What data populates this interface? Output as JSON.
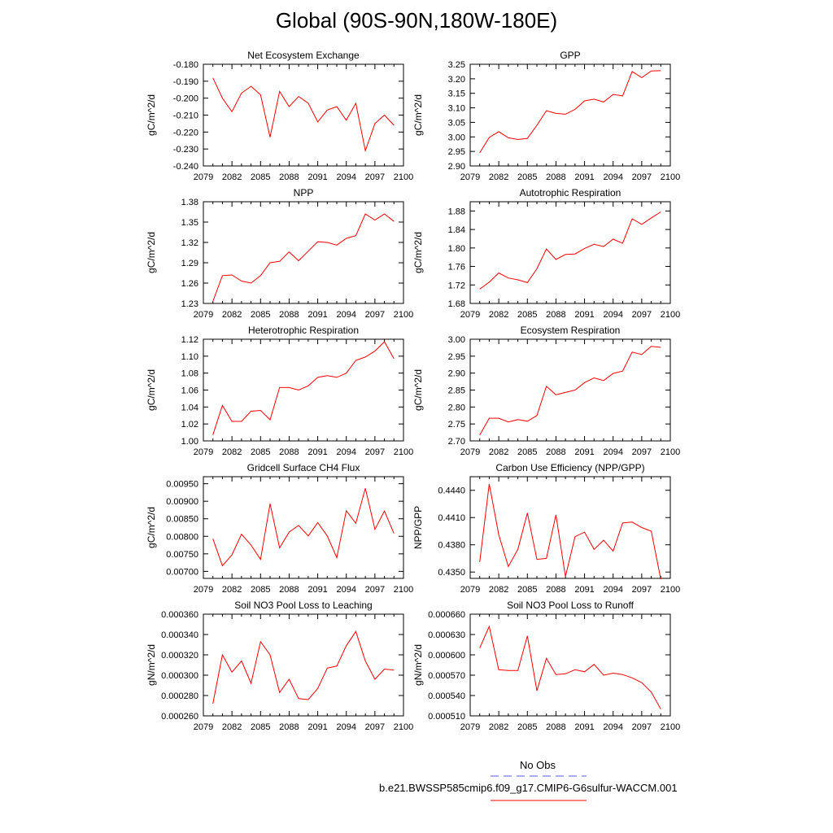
{
  "title": "Global (90S-90N,180W-180E)",
  "legend": {
    "title": "No Obs",
    "entries": [
      {
        "label": "",
        "color": "#5555ff",
        "dash": true
      },
      {
        "label": "b.e21.BWSSP585cmip6.f09_g17.CMIP6-G6sulfur-WACCM.001",
        "color": "#ff0000",
        "dash": false
      }
    ]
  },
  "chart_data": [
    {
      "type": "line",
      "title": "Net Ecosystem Exchange",
      "ylabel": "gC/m^2/d",
      "x": [
        2080,
        2081,
        2082,
        2083,
        2084,
        2085,
        2086,
        2087,
        2088,
        2089,
        2090,
        2091,
        2092,
        2093,
        2094,
        2095,
        2096,
        2097,
        2098,
        2099
      ],
      "xlim": [
        2079,
        2100
      ],
      "xticks": [
        "2079",
        "2082",
        "2085",
        "2088",
        "2091",
        "2094",
        "2097",
        "2100"
      ],
      "ylim": [
        -0.24,
        -0.18
      ],
      "yticks": [
        "-0.180",
        "-0.190",
        "-0.200",
        "-0.210",
        "-0.220",
        "-0.230",
        "-0.240"
      ],
      "ytick_values": [
        -0.18,
        -0.19,
        -0.2,
        -0.21,
        -0.22,
        -0.23,
        -0.24
      ],
      "series": [
        {
          "color": "#ff0000",
          "values": [
            -0.188,
            -0.2,
            -0.208,
            -0.197,
            -0.193,
            -0.198,
            -0.223,
            -0.196,
            -0.205,
            -0.199,
            -0.203,
            -0.214,
            -0.207,
            -0.205,
            -0.213,
            -0.203,
            -0.231,
            -0.215,
            -0.21,
            -0.216
          ]
        }
      ]
    },
    {
      "type": "line",
      "title": "GPP",
      "ylabel": "gC/m^2/d",
      "x": [
        2080,
        2081,
        2082,
        2083,
        2084,
        2085,
        2086,
        2087,
        2088,
        2089,
        2090,
        2091,
        2092,
        2093,
        2094,
        2095,
        2096,
        2097,
        2098,
        2099
      ],
      "xlim": [
        2079,
        2100
      ],
      "xticks": [
        "2079",
        "2082",
        "2085",
        "2088",
        "2091",
        "2094",
        "2097",
        "2100"
      ],
      "ylim": [
        2.9,
        3.25
      ],
      "yticks": [
        "3.25",
        "3.20",
        "3.15",
        "3.10",
        "3.05",
        "3.00",
        "2.95",
        "2.90"
      ],
      "ytick_values": [
        3.25,
        3.2,
        3.15,
        3.1,
        3.05,
        3.0,
        2.95,
        2.9
      ],
      "series": [
        {
          "color": "#ff0000",
          "values": [
            2.945,
            2.998,
            3.018,
            2.997,
            2.991,
            2.995,
            3.04,
            3.09,
            3.081,
            3.078,
            3.095,
            3.124,
            3.13,
            3.12,
            3.146,
            3.141,
            3.225,
            3.204,
            3.227,
            3.228
          ]
        }
      ]
    },
    {
      "type": "line",
      "title": "NPP",
      "ylabel": "gC/m^2/d",
      "x": [
        2080,
        2081,
        2082,
        2083,
        2084,
        2085,
        2086,
        2087,
        2088,
        2089,
        2090,
        2091,
        2092,
        2093,
        2094,
        2095,
        2096,
        2097,
        2098,
        2099
      ],
      "xlim": [
        2079,
        2100
      ],
      "xticks": [
        "2079",
        "2082",
        "2085",
        "2088",
        "2091",
        "2094",
        "2097",
        "2100"
      ],
      "ylim": [
        1.23,
        1.38
      ],
      "yticks": [
        "1.38",
        "1.35",
        "1.32",
        "1.29",
        "1.26",
        "1.23"
      ],
      "ytick_values": [
        1.38,
        1.35,
        1.32,
        1.29,
        1.26,
        1.23
      ],
      "series": [
        {
          "color": "#ff0000",
          "values": [
            1.233,
            1.271,
            1.272,
            1.263,
            1.26,
            1.271,
            1.29,
            1.292,
            1.306,
            1.293,
            1.307,
            1.321,
            1.32,
            1.316,
            1.326,
            1.33,
            1.362,
            1.353,
            1.362,
            1.351
          ]
        }
      ]
    },
    {
      "type": "line",
      "title": "Autotrophic Respiration",
      "ylabel": "gC/m^2/d",
      "x": [
        2080,
        2081,
        2082,
        2083,
        2084,
        2085,
        2086,
        2087,
        2088,
        2089,
        2090,
        2091,
        2092,
        2093,
        2094,
        2095,
        2096,
        2097,
        2098,
        2099
      ],
      "xlim": [
        2079,
        2100
      ],
      "xticks": [
        "2079",
        "2082",
        "2085",
        "2088",
        "2091",
        "2094",
        "2097",
        "2100"
      ],
      "ylim": [
        1.68,
        1.9
      ],
      "yticks": [
        "1.88",
        "1.84",
        "1.80",
        "1.76",
        "1.72",
        "1.68"
      ],
      "ytick_values": [
        1.88,
        1.84,
        1.8,
        1.76,
        1.72,
        1.68
      ],
      "series": [
        {
          "color": "#ff0000",
          "values": [
            1.711,
            1.726,
            1.746,
            1.735,
            1.731,
            1.725,
            1.755,
            1.798,
            1.775,
            1.786,
            1.787,
            1.799,
            1.808,
            1.803,
            1.819,
            1.81,
            1.863,
            1.851,
            1.865,
            1.878
          ]
        }
      ]
    },
    {
      "type": "line",
      "title": "Heterotrophic Respiration",
      "ylabel": "gC/m^2/d",
      "x": [
        2080,
        2081,
        2082,
        2083,
        2084,
        2085,
        2086,
        2087,
        2088,
        2089,
        2090,
        2091,
        2092,
        2093,
        2094,
        2095,
        2096,
        2097,
        2098,
        2099
      ],
      "xlim": [
        2079,
        2100
      ],
      "xticks": [
        "2079",
        "2082",
        "2085",
        "2088",
        "2091",
        "2094",
        "2097",
        "2100"
      ],
      "ylim": [
        1.0,
        1.12
      ],
      "yticks": [
        "1.12",
        "1.10",
        "1.08",
        "1.06",
        "1.04",
        "1.02",
        "1.00"
      ],
      "ytick_values": [
        1.12,
        1.1,
        1.08,
        1.06,
        1.04,
        1.02,
        1.0
      ],
      "series": [
        {
          "color": "#ff0000",
          "values": [
            1.007,
            1.042,
            1.023,
            1.023,
            1.035,
            1.036,
            1.025,
            1.063,
            1.063,
            1.06,
            1.065,
            1.075,
            1.077,
            1.075,
            1.08,
            1.095,
            1.099,
            1.106,
            1.117,
            1.097
          ]
        }
      ]
    },
    {
      "type": "line",
      "title": "Ecosystem Respiration",
      "ylabel": "gC/m^2/d",
      "x": [
        2080,
        2081,
        2082,
        2083,
        2084,
        2085,
        2086,
        2087,
        2088,
        2089,
        2090,
        2091,
        2092,
        2093,
        2094,
        2095,
        2096,
        2097,
        2098,
        2099
      ],
      "xlim": [
        2079,
        2100
      ],
      "xticks": [
        "2079",
        "2082",
        "2085",
        "2088",
        "2091",
        "2094",
        "2097",
        "2100"
      ],
      "ylim": [
        2.7,
        3.0
      ],
      "yticks": [
        "3.00",
        "2.95",
        "2.90",
        "2.85",
        "2.80",
        "2.75",
        "2.70"
      ],
      "ytick_values": [
        3.0,
        2.95,
        2.9,
        2.85,
        2.8,
        2.75,
        2.7
      ],
      "series": [
        {
          "color": "#ff0000",
          "values": [
            2.717,
            2.767,
            2.767,
            2.756,
            2.763,
            2.758,
            2.775,
            2.861,
            2.836,
            2.843,
            2.85,
            2.872,
            2.886,
            2.878,
            2.899,
            2.906,
            2.962,
            2.955,
            2.979,
            2.976
          ]
        }
      ]
    },
    {
      "type": "line",
      "title": "Gridcell Surface CH4 Flux",
      "ylabel": "gC/m^2/d",
      "x": [
        2080,
        2081,
        2082,
        2083,
        2084,
        2085,
        2086,
        2087,
        2088,
        2089,
        2090,
        2091,
        2092,
        2093,
        2094,
        2095,
        2096,
        2097,
        2098,
        2099
      ],
      "xlim": [
        2079,
        2100
      ],
      "xticks": [
        "2079",
        "2082",
        "2085",
        "2088",
        "2091",
        "2094",
        "2097",
        "2100"
      ],
      "ylim": [
        0.0068,
        0.0097
      ],
      "yticks": [
        "0.00950",
        "0.00900",
        "0.00850",
        "0.00800",
        "0.00750",
        "0.00700"
      ],
      "ytick_values": [
        0.0095,
        0.009,
        0.0085,
        0.008,
        0.0075,
        0.007
      ],
      "series": [
        {
          "color": "#ff0000",
          "values": [
            0.00793,
            0.00716,
            0.00747,
            0.00806,
            0.00775,
            0.00734,
            0.00893,
            0.00767,
            0.00812,
            0.00831,
            0.00801,
            0.00839,
            0.00801,
            0.00739,
            0.00873,
            0.00837,
            0.00937,
            0.0082,
            0.00872,
            0.00808
          ]
        }
      ]
    },
    {
      "type": "line",
      "title": "Carbon Use Efficiency (NPP/GPP)",
      "ylabel": "NPP/GPP",
      "x": [
        2080,
        2081,
        2082,
        2083,
        2084,
        2085,
        2086,
        2087,
        2088,
        2089,
        2090,
        2091,
        2092,
        2093,
        2094,
        2095,
        2096,
        2097,
        2098,
        2099
      ],
      "xlim": [
        2079,
        2100
      ],
      "xticks": [
        "2079",
        "2082",
        "2085",
        "2088",
        "2091",
        "2094",
        "2097",
        "2100"
      ],
      "ylim": [
        0.4343,
        0.4455
      ],
      "yticks": [
        "0.4440",
        "0.4410",
        "0.4380",
        "0.4350"
      ],
      "ytick_values": [
        0.444,
        0.441,
        0.438,
        0.435
      ],
      "series": [
        {
          "color": "#ff0000",
          "values": [
            0.4361,
            0.4447,
            0.4391,
            0.4356,
            0.4375,
            0.4415,
            0.4364,
            0.4365,
            0.4413,
            0.4345,
            0.4389,
            0.4394,
            0.4375,
            0.4385,
            0.4373,
            0.4404,
            0.4405,
            0.4399,
            0.4395,
            0.4342
          ]
        }
      ]
    },
    {
      "type": "line",
      "title": "Soil NO3 Pool Loss to Leaching",
      "ylabel": "gN/m^2/d",
      "x": [
        2080,
        2081,
        2082,
        2083,
        2084,
        2085,
        2086,
        2087,
        2088,
        2089,
        2090,
        2091,
        2092,
        2093,
        2094,
        2095,
        2096,
        2097,
        2098,
        2099
      ],
      "xlim": [
        2079,
        2100
      ],
      "xticks": [
        "2079",
        "2082",
        "2085",
        "2088",
        "2091",
        "2094",
        "2097",
        "2100"
      ],
      "ylim": [
        0.00026,
        0.00036
      ],
      "yticks": [
        "0.000360",
        "0.000340",
        "0.000320",
        "0.000300",
        "0.000280",
        "0.000260"
      ],
      "ytick_values": [
        0.00036,
        0.00034,
        0.00032,
        0.0003,
        0.00028,
        0.00026
      ],
      "series": [
        {
          "color": "#ff0000",
          "values": [
            0.000272,
            0.00032,
            0.000303,
            0.000314,
            0.000292,
            0.000333,
            0.00032,
            0.000283,
            0.000296,
            0.000277,
            0.000276,
            0.000287,
            0.000307,
            0.000309,
            0.000329,
            0.000343,
            0.000314,
            0.000296,
            0.000306,
            0.000305
          ]
        }
      ]
    },
    {
      "type": "line",
      "title": "Soil NO3 Pool Loss to Runoff",
      "ylabel": "gN/m^2/d",
      "x": [
        2080,
        2081,
        2082,
        2083,
        2084,
        2085,
        2086,
        2087,
        2088,
        2089,
        2090,
        2091,
        2092,
        2093,
        2094,
        2095,
        2096,
        2097,
        2098,
        2099
      ],
      "xlim": [
        2079,
        2100
      ],
      "xticks": [
        "2079",
        "2082",
        "2085",
        "2088",
        "2091",
        "2094",
        "2097",
        "2100"
      ],
      "ylim": [
        0.00051,
        0.00066
      ],
      "yticks": [
        "0.000660",
        "0.000630",
        "0.000600",
        "0.000570",
        "0.000540",
        "0.000510"
      ],
      "ytick_values": [
        0.00066,
        0.00063,
        0.0006,
        0.00057,
        0.00054,
        0.00051
      ],
      "series": [
        {
          "color": "#ff0000",
          "values": [
            0.00061,
            0.000642,
            0.000578,
            0.000577,
            0.000577,
            0.000628,
            0.000547,
            0.000595,
            0.000571,
            0.000572,
            0.000578,
            0.000575,
            0.000586,
            0.00057,
            0.000573,
            0.000571,
            0.000566,
            0.000559,
            0.000545,
            0.00052
          ]
        }
      ]
    }
  ]
}
